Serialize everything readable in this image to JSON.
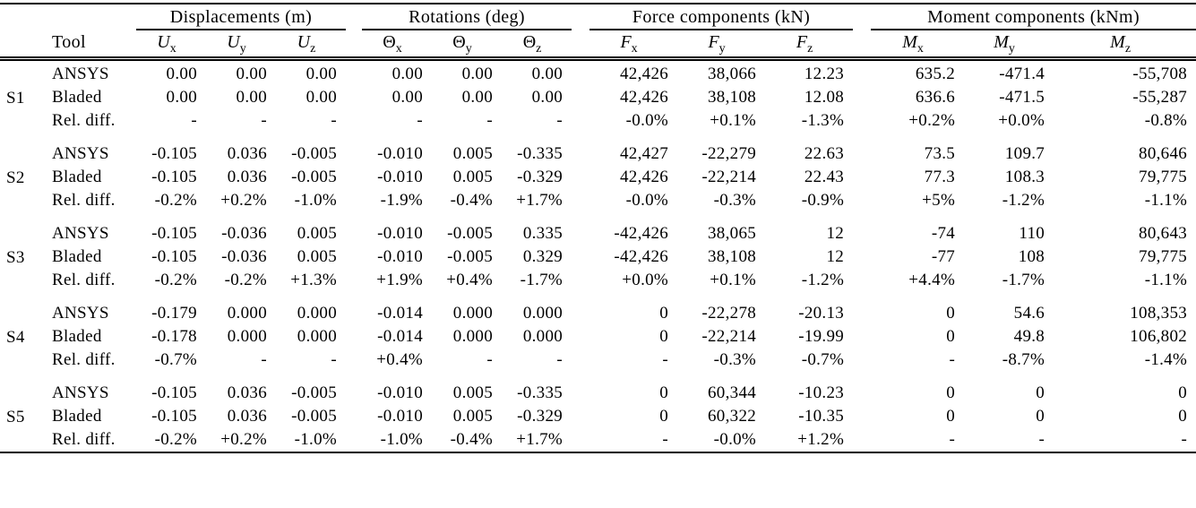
{
  "table": {
    "tool_header": "Tool",
    "column_groups": [
      {
        "label": "Displacements (m)",
        "columns": [
          {
            "name": "u-x",
            "base": "U",
            "sub": "x",
            "italic": true
          },
          {
            "name": "u-y",
            "base": "U",
            "sub": "y",
            "italic": true
          },
          {
            "name": "u-z",
            "base": "U",
            "sub": "z",
            "italic": true
          }
        ]
      },
      {
        "label": "Rotations (deg)",
        "columns": [
          {
            "name": "theta-x",
            "base": "Θ",
            "sub": "x",
            "italic": false
          },
          {
            "name": "theta-y",
            "base": "Θ",
            "sub": "y",
            "italic": false
          },
          {
            "name": "theta-z",
            "base": "Θ",
            "sub": "z",
            "italic": false
          }
        ]
      },
      {
        "label": "Force components (kN)",
        "columns": [
          {
            "name": "f-x",
            "base": "F",
            "sub": "x",
            "italic": true
          },
          {
            "name": "f-y",
            "base": "F",
            "sub": "y",
            "italic": true
          },
          {
            "name": "f-z",
            "base": "F",
            "sub": "z",
            "italic": true
          }
        ]
      },
      {
        "label": "Moment components (kNm)",
        "columns": [
          {
            "name": "m-x",
            "base": "M",
            "sub": "x",
            "italic": true
          },
          {
            "name": "m-y",
            "base": "M",
            "sub": "y",
            "italic": true
          },
          {
            "name": "m-z",
            "base": "M",
            "sub": "z",
            "italic": true
          }
        ]
      }
    ],
    "cases": [
      {
        "id": "S1",
        "rows": [
          {
            "tool": "ANSYS",
            "values": [
              "0.00",
              "0.00",
              "0.00",
              "0.00",
              "0.00",
              "0.00",
              "42,426",
              "38,066",
              "12.23",
              "635.2",
              "-471.4",
              "-55,708"
            ]
          },
          {
            "tool": "Bladed",
            "values": [
              "0.00",
              "0.00",
              "0.00",
              "0.00",
              "0.00",
              "0.00",
              "42,426",
              "38,108",
              "12.08",
              "636.6",
              "-471.5",
              "-55,287"
            ]
          },
          {
            "tool": "Rel. diff.",
            "values": [
              "-",
              "-",
              "-",
              "-",
              "-",
              "-",
              "-0.0%",
              "+0.1%",
              "-1.3%",
              "+0.2%",
              "+0.0%",
              "-0.8%"
            ]
          }
        ]
      },
      {
        "id": "S2",
        "rows": [
          {
            "tool": "ANSYS",
            "values": [
              "-0.105",
              "0.036",
              "-0.005",
              "-0.010",
              "0.005",
              "-0.335",
              "42,427",
              "-22,279",
              "22.63",
              "73.5",
              "109.7",
              "80,646"
            ]
          },
          {
            "tool": "Bladed",
            "values": [
              "-0.105",
              "0.036",
              "-0.005",
              "-0.010",
              "0.005",
              "-0.329",
              "42,426",
              "-22,214",
              "22.43",
              "77.3",
              "108.3",
              "79,775"
            ]
          },
          {
            "tool": "Rel. diff.",
            "values": [
              "-0.2%",
              "+0.2%",
              "-1.0%",
              "-1.9%",
              "-0.4%",
              "+1.7%",
              "-0.0%",
              "-0.3%",
              "-0.9%",
              "+5%",
              "-1.2%",
              "-1.1%"
            ]
          }
        ]
      },
      {
        "id": "S3",
        "rows": [
          {
            "tool": "ANSYS",
            "values": [
              "-0.105",
              "-0.036",
              "0.005",
              "-0.010",
              "-0.005",
              "0.335",
              "-42,426",
              "38,065",
              "12",
              "-74",
              "110",
              "80,643"
            ]
          },
          {
            "tool": "Bladed",
            "values": [
              "-0.105",
              "-0.036",
              "0.005",
              "-0.010",
              "-0.005",
              "0.329",
              "-42,426",
              "38,108",
              "12",
              "-77",
              "108",
              "79,775"
            ]
          },
          {
            "tool": "Rel. diff.",
            "values": [
              "-0.2%",
              "-0.2%",
              "+1.3%",
              "+1.9%",
              "+0.4%",
              "-1.7%",
              "+0.0%",
              "+0.1%",
              "-1.2%",
              "+4.4%",
              "-1.7%",
              "-1.1%"
            ]
          }
        ]
      },
      {
        "id": "S4",
        "rows": [
          {
            "tool": "ANSYS",
            "values": [
              "-0.179",
              "0.000",
              "0.000",
              "-0.014",
              "0.000",
              "0.000",
              "0",
              "-22,278",
              "-20.13",
              "0",
              "54.6",
              "108,353"
            ]
          },
          {
            "tool": "Bladed",
            "values": [
              "-0.178",
              "0.000",
              "0.000",
              "-0.014",
              "0.000",
              "0.000",
              "0",
              "-22,214",
              "-19.99",
              "0",
              "49.8",
              "106,802"
            ]
          },
          {
            "tool": "Rel. diff.",
            "values": [
              "-0.7%",
              "-",
              "-",
              "+0.4%",
              "-",
              "-",
              "-",
              "-0.3%",
              "-0.7%",
              "-",
              "-8.7%",
              "-1.4%"
            ]
          }
        ]
      },
      {
        "id": "S5",
        "rows": [
          {
            "tool": "ANSYS",
            "values": [
              "-0.105",
              "0.036",
              "-0.005",
              "-0.010",
              "0.005",
              "-0.335",
              "0",
              "60,344",
              "-10.23",
              "0",
              "0",
              "0"
            ]
          },
          {
            "tool": "Bladed",
            "values": [
              "-0.105",
              "0.036",
              "-0.005",
              "-0.010",
              "0.005",
              "-0.329",
              "0",
              "60,322",
              "-10.35",
              "0",
              "0",
              "0"
            ]
          },
          {
            "tool": "Rel. diff.",
            "values": [
              "-0.2%",
              "+0.2%",
              "-1.0%",
              "-1.0%",
              "-0.4%",
              "+1.7%",
              "-",
              "-0.0%",
              "+1.2%",
              "-",
              "-",
              "-"
            ]
          }
        ]
      }
    ]
  }
}
